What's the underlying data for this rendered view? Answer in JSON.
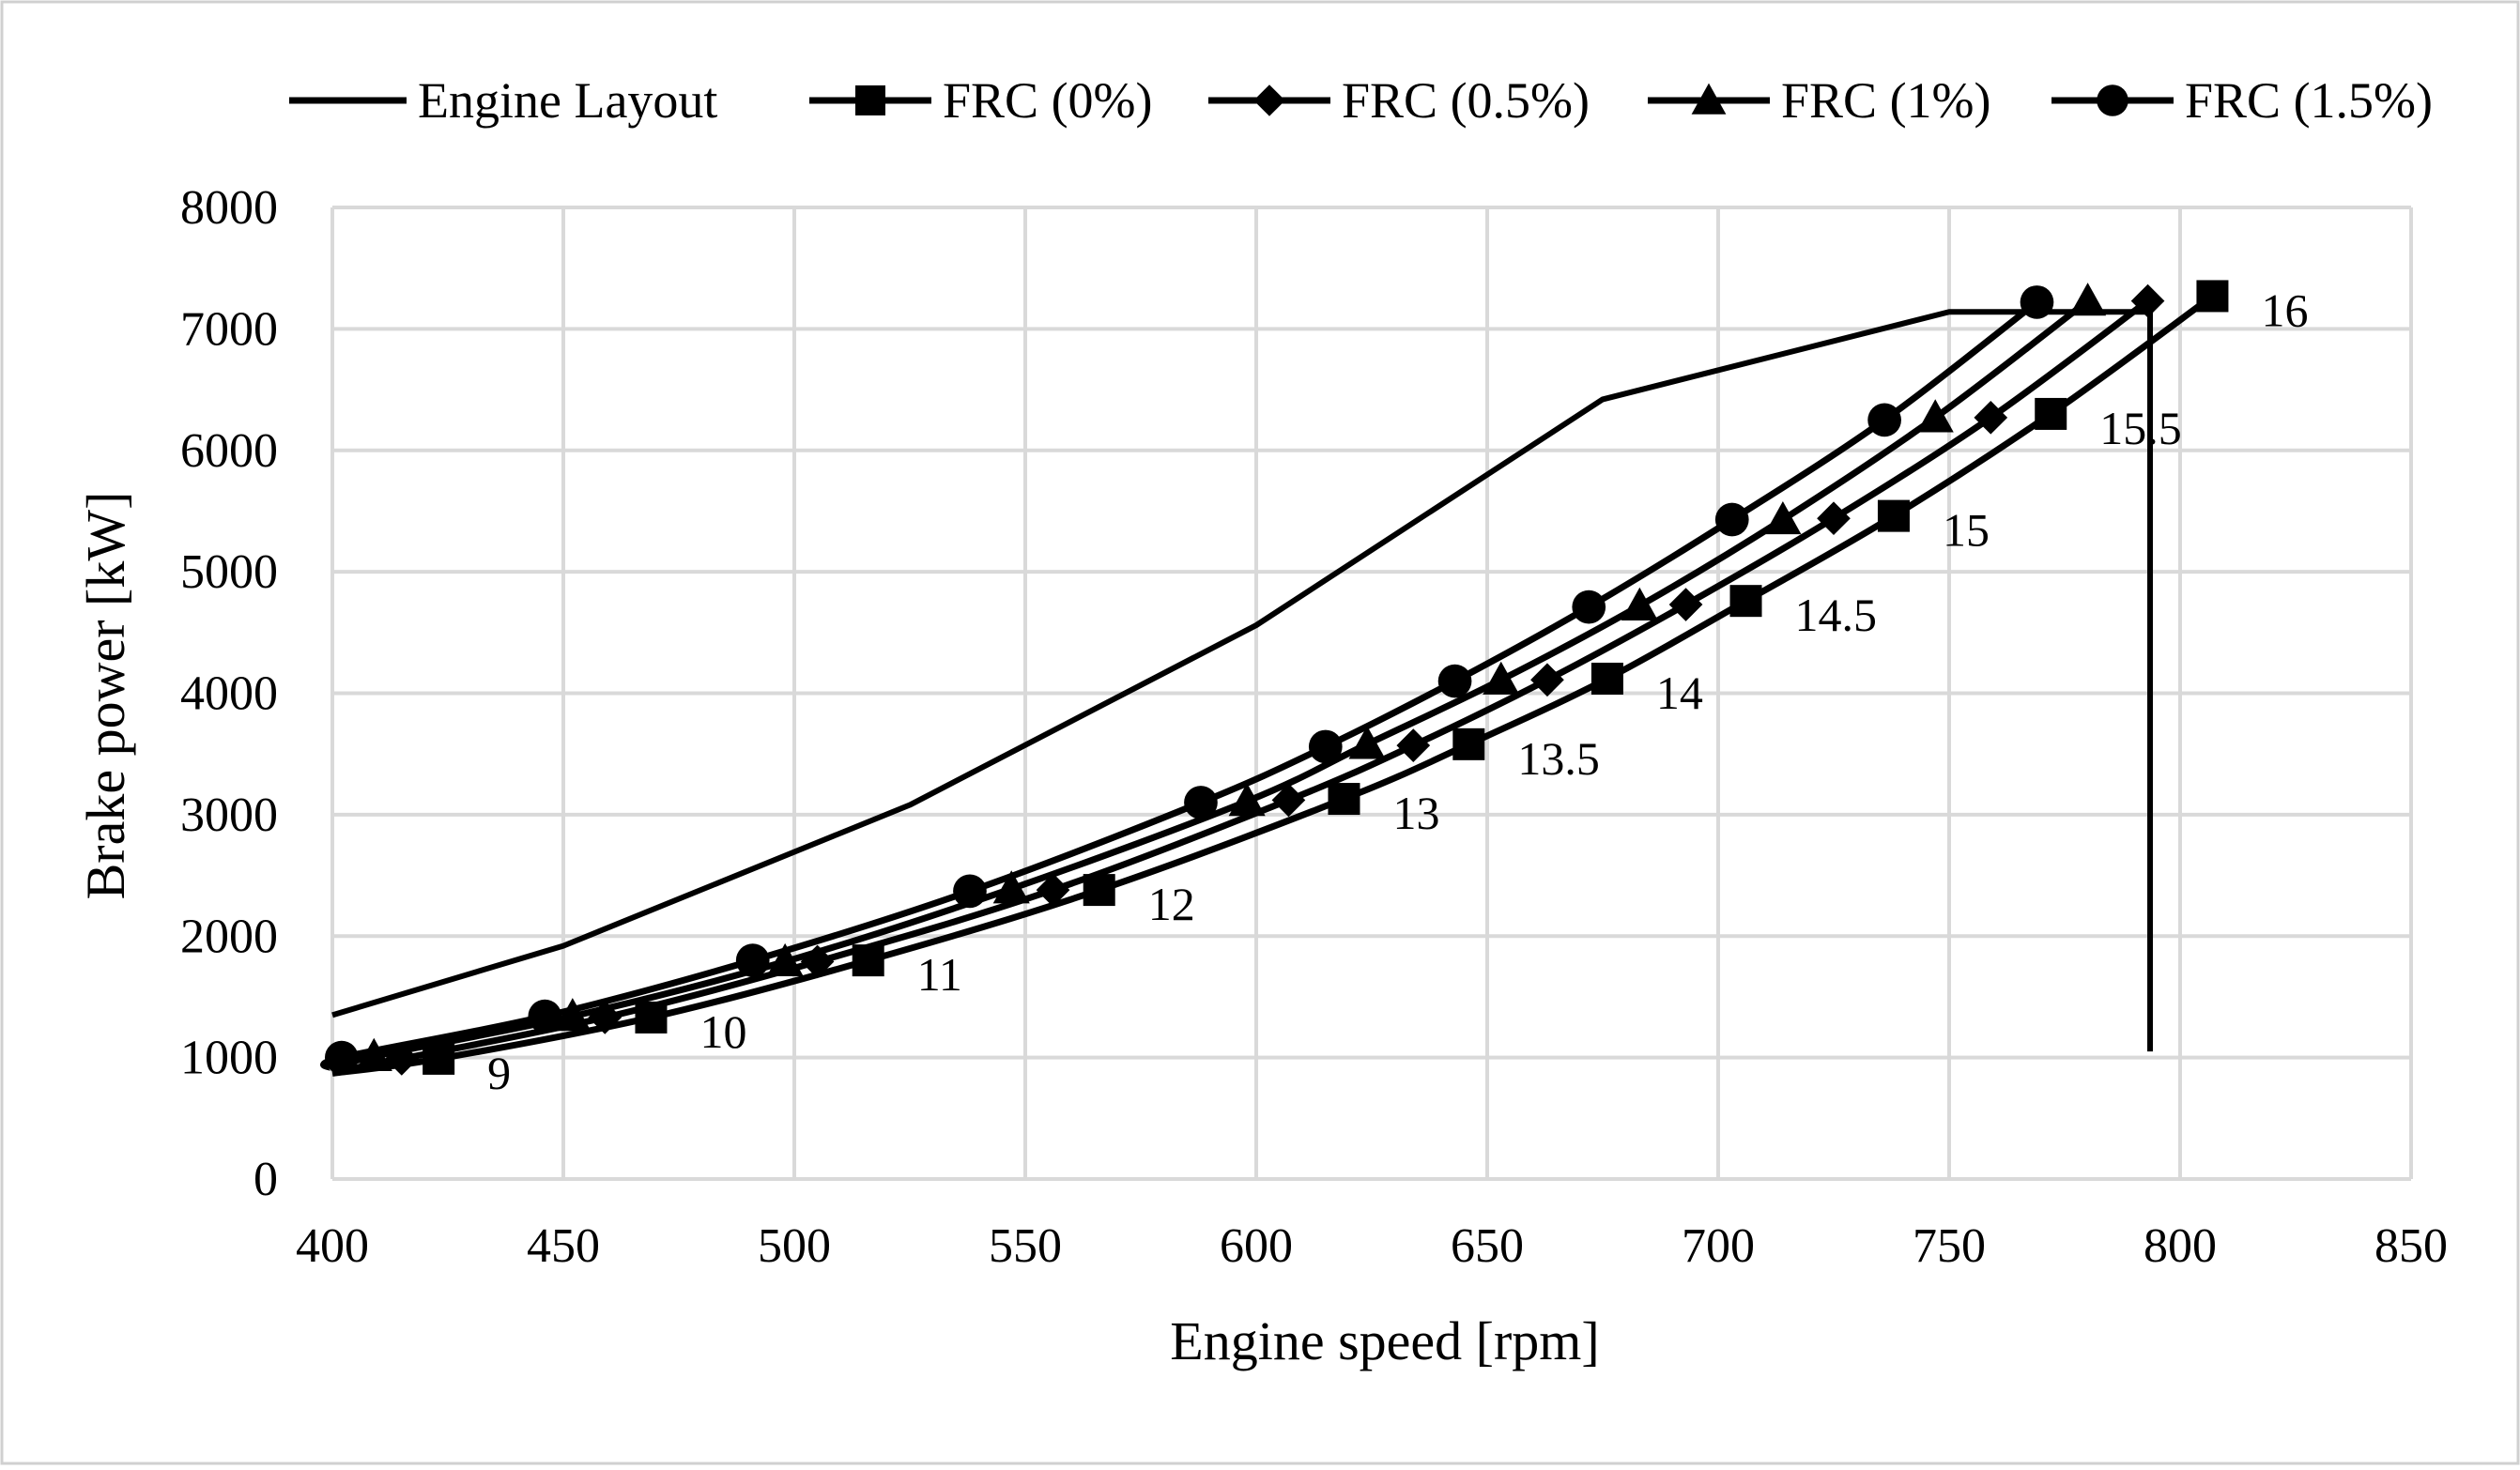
{
  "chart_data": {
    "type": "line",
    "xlabel": "Engine speed [rpm]",
    "ylabel": "Brake power [kW]",
    "xlim": [
      400,
      850
    ],
    "ylim": [
      0,
      8000
    ],
    "x_ticks": [
      400,
      450,
      500,
      550,
      600,
      650,
      700,
      750,
      800,
      850
    ],
    "y_ticks": [
      0,
      1000,
      2000,
      3000,
      4000,
      5000,
      6000,
      7000,
      8000
    ],
    "grid": true,
    "legend_position": "top",
    "series": [
      {
        "name": "Engine Layout",
        "marker": "none",
        "x": [
          400,
          450,
          525,
          600,
          675,
          750,
          793.5,
          793.5
        ],
        "y": [
          1350,
          1920,
          3080,
          4560,
          6420,
          7140,
          7140,
          1050
        ]
      },
      {
        "name": "FRC (0%)",
        "marker": "square",
        "x": [
          400,
          423,
          469,
          516,
          566,
          619,
          646,
          676,
          706,
          738,
          772,
          807
        ],
        "y": [
          870,
          990,
          1330,
          1800,
          2380,
          3130,
          3580,
          4120,
          4760,
          5460,
          6300,
          7270
        ]
      },
      {
        "name": "FRC (0.5%)",
        "marker": "diamond",
        "x": [
          400,
          415,
          459,
          505,
          556,
          607,
          634,
          663,
          693,
          725,
          759,
          793
        ],
        "y": [
          880,
          990,
          1330,
          1790,
          2380,
          3120,
          3570,
          4110,
          4730,
          5440,
          6270,
          7230
        ]
      },
      {
        "name": "FRC (1%)",
        "marker": "triangle",
        "x": [
          400,
          409,
          452,
          498,
          547,
          598,
          624,
          653,
          683,
          714,
          747,
          780
        ],
        "y": [
          900,
          1010,
          1340,
          1790,
          2390,
          3110,
          3580,
          4110,
          4720,
          5430,
          6270,
          7230
        ]
      },
      {
        "name": "FRC (1.5%)",
        "marker": "circle",
        "x": [
          400,
          402,
          446,
          491,
          538,
          588,
          615,
          643,
          672,
          703,
          736,
          769
        ],
        "y": [
          910,
          1000,
          1340,
          1800,
          2370,
          3100,
          3560,
          4100,
          4710,
          5430,
          6250,
          7220
        ]
      }
    ],
    "annotations": [
      {
        "text": "9",
        "x": 423,
        "y": 990
      },
      {
        "text": "10",
        "x": 469,
        "y": 1330
      },
      {
        "text": "11",
        "x": 516,
        "y": 1800
      },
      {
        "text": "12",
        "x": 566,
        "y": 2380
      },
      {
        "text": "13",
        "x": 619,
        "y": 3130
      },
      {
        "text": "13.5",
        "x": 646,
        "y": 3580
      },
      {
        "text": "14",
        "x": 676,
        "y": 4120
      },
      {
        "text": "14.5",
        "x": 706,
        "y": 4760
      },
      {
        "text": "15",
        "x": 738,
        "y": 5460
      },
      {
        "text": "15.5",
        "x": 772,
        "y": 6300
      },
      {
        "text": "16",
        "x": 807,
        "y": 7270
      }
    ]
  }
}
